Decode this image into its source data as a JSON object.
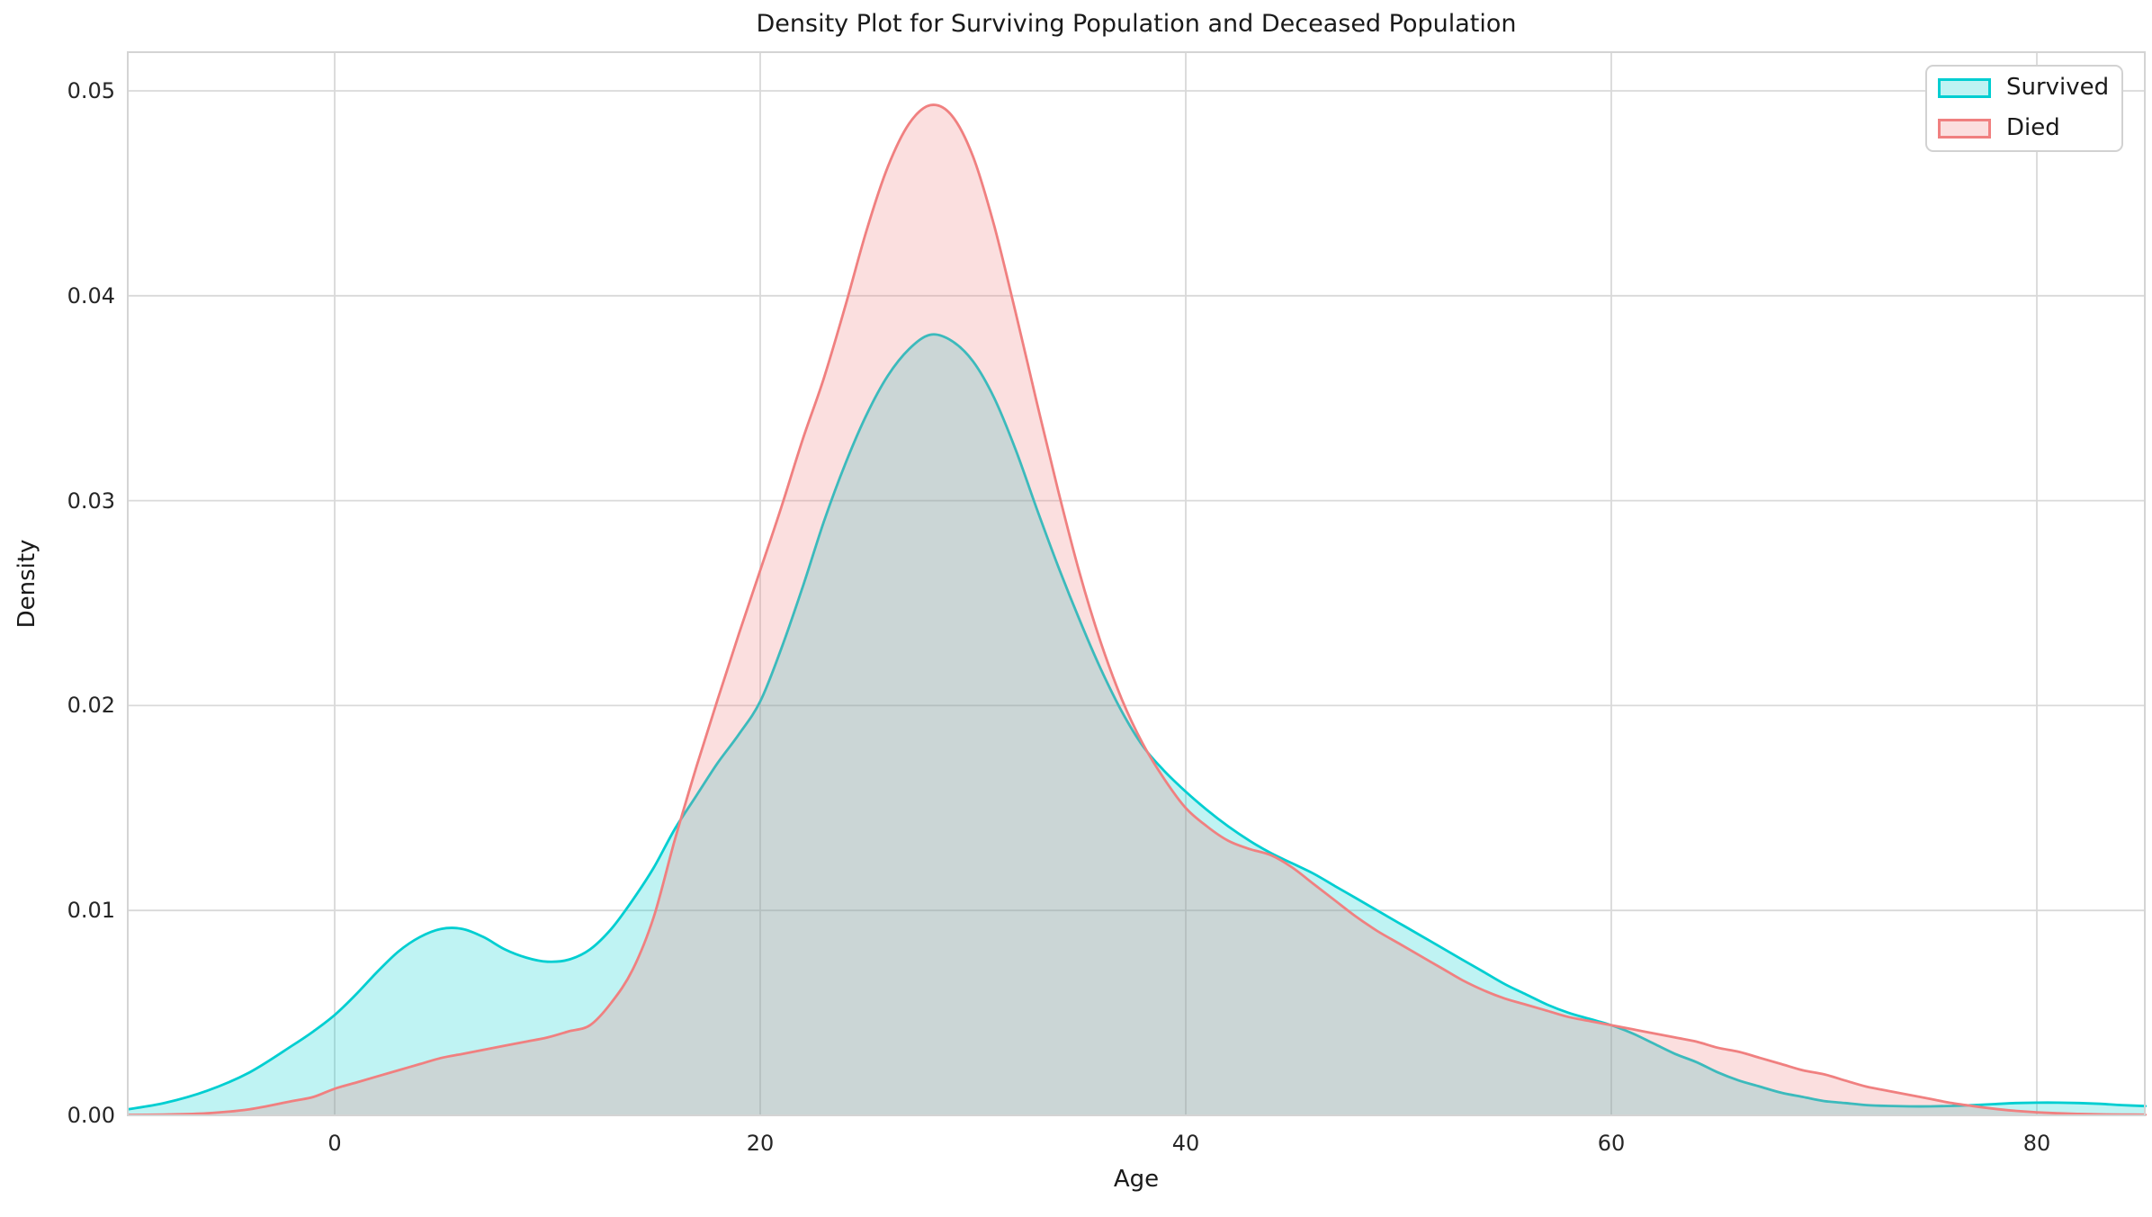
{
  "figure": {
    "title": "Density Plot for Surviving Population and Deceased Population",
    "background": "#ffffff",
    "grid_color": "#d9d9d9",
    "spine_color": "#d4d4d4",
    "text_color": "#262626"
  },
  "legend": {
    "items": [
      {
        "label": "Survived",
        "color": "#00CED1",
        "fill": "rgba(0,206,209,0.25)"
      },
      {
        "label": "Died",
        "color": "#F08080",
        "fill": "rgba(240,128,128,0.25)"
      }
    ]
  },
  "chart_data": {
    "type": "area",
    "subtype": "kde-density",
    "title": "Density Plot for Surviving Population and Deceased Population",
    "xlabel": "Age",
    "ylabel": "Density",
    "xlim": [
      -9.7,
      85.1
    ],
    "ylim": [
      0,
      0.0519
    ],
    "xticks": [
      0,
      20,
      40,
      60,
      80
    ],
    "ytick_labels": [
      "0.00",
      "0.01",
      "0.02",
      "0.03",
      "0.04",
      "0.05"
    ],
    "grid": true,
    "legend_position": "upper right",
    "series": [
      {
        "name": "Survived",
        "line_color": "#00CED1",
        "fill_color": "rgba(0,206,209,0.25)",
        "peak": {
          "age": 28,
          "density": 0.0381
        },
        "points": [
          [
            -9.7,
            0.0003
          ],
          [
            -8,
            0.0006
          ],
          [
            -6,
            0.0012
          ],
          [
            -4,
            0.0021
          ],
          [
            -2,
            0.0034
          ],
          [
            -1,
            0.0041
          ],
          [
            0,
            0.0049
          ],
          [
            1,
            0.0059
          ],
          [
            2,
            0.007
          ],
          [
            3,
            0.008
          ],
          [
            4,
            0.0087
          ],
          [
            5,
            0.0091
          ],
          [
            6,
            0.0091
          ],
          [
            7,
            0.0087
          ],
          [
            8,
            0.0081
          ],
          [
            9,
            0.0077
          ],
          [
            10,
            0.0075
          ],
          [
            11,
            0.0076
          ],
          [
            12,
            0.0081
          ],
          [
            13,
            0.0091
          ],
          [
            14,
            0.0105
          ],
          [
            15,
            0.0121
          ],
          [
            16,
            0.014
          ],
          [
            17,
            0.0156
          ],
          [
            18,
            0.0172
          ],
          [
            19,
            0.0186
          ],
          [
            20,
            0.0202
          ],
          [
            21,
            0.0228
          ],
          [
            22,
            0.0258
          ],
          [
            23,
            0.029
          ],
          [
            24,
            0.0318
          ],
          [
            25,
            0.0342
          ],
          [
            26,
            0.0361
          ],
          [
            27,
            0.0374
          ],
          [
            28,
            0.0381
          ],
          [
            29,
            0.0378
          ],
          [
            30,
            0.0368
          ],
          [
            31,
            0.035
          ],
          [
            32,
            0.0325
          ],
          [
            33,
            0.0296
          ],
          [
            34,
            0.0268
          ],
          [
            35,
            0.0242
          ],
          [
            36,
            0.0218
          ],
          [
            37,
            0.0197
          ],
          [
            38,
            0.018
          ],
          [
            39,
            0.0168
          ],
          [
            40,
            0.0158
          ],
          [
            41,
            0.0149
          ],
          [
            42,
            0.0141
          ],
          [
            43,
            0.0134
          ],
          [
            44,
            0.0128
          ],
          [
            45,
            0.0123
          ],
          [
            46,
            0.0118
          ],
          [
            47,
            0.0112
          ],
          [
            48,
            0.0106
          ],
          [
            49,
            0.01
          ],
          [
            50,
            0.0094
          ],
          [
            51,
            0.0088
          ],
          [
            52,
            0.0082
          ],
          [
            53,
            0.0076
          ],
          [
            54,
            0.007
          ],
          [
            55,
            0.0064
          ],
          [
            56,
            0.0059
          ],
          [
            57,
            0.0054
          ],
          [
            58,
            0.005
          ],
          [
            59,
            0.0047
          ],
          [
            60,
            0.0044
          ],
          [
            61,
            0.004
          ],
          [
            62,
            0.0035
          ],
          [
            63,
            0.003
          ],
          [
            64,
            0.0026
          ],
          [
            65,
            0.0021
          ],
          [
            66,
            0.0017
          ],
          [
            67,
            0.0014
          ],
          [
            68,
            0.0011
          ],
          [
            69,
            0.0009
          ],
          [
            70,
            0.0007
          ],
          [
            71,
            0.0006
          ],
          [
            72,
            0.0005
          ],
          [
            73,
            0.00046
          ],
          [
            74,
            0.00044
          ],
          [
            75,
            0.00044
          ],
          [
            76,
            0.00046
          ],
          [
            77,
            0.0005
          ],
          [
            78,
            0.00055
          ],
          [
            79,
            0.0006
          ],
          [
            80,
            0.00062
          ],
          [
            81,
            0.00062
          ],
          [
            82,
            0.0006
          ],
          [
            83,
            0.00056
          ],
          [
            84,
            0.0005
          ],
          [
            85.1,
            0.00045
          ]
        ]
      },
      {
        "name": "Died",
        "line_color": "#F08080",
        "fill_color": "rgba(240,128,128,0.25)",
        "peak": {
          "age": 28,
          "density": 0.0493
        },
        "points": [
          [
            -9.7,
            2e-05
          ],
          [
            -8,
            4e-05
          ],
          [
            -6,
            0.0001
          ],
          [
            -4,
            0.0003
          ],
          [
            -2,
            0.0007
          ],
          [
            -1,
            0.0009
          ],
          [
            0,
            0.0013
          ],
          [
            1,
            0.0016
          ],
          [
            2,
            0.0019
          ],
          [
            3,
            0.0022
          ],
          [
            4,
            0.0025
          ],
          [
            5,
            0.0028
          ],
          [
            6,
            0.003
          ],
          [
            7,
            0.0032
          ],
          [
            8,
            0.0034
          ],
          [
            9,
            0.0036
          ],
          [
            10,
            0.0038
          ],
          [
            11,
            0.0041
          ],
          [
            12,
            0.0044
          ],
          [
            13,
            0.0055
          ],
          [
            14,
            0.0071
          ],
          [
            15,
            0.0097
          ],
          [
            16,
            0.0135
          ],
          [
            17,
            0.017
          ],
          [
            18,
            0.0203
          ],
          [
            19,
            0.0235
          ],
          [
            20,
            0.0266
          ],
          [
            21,
            0.0297
          ],
          [
            22,
            0.033
          ],
          [
            23,
            0.036
          ],
          [
            24,
            0.0395
          ],
          [
            25,
            0.0432
          ],
          [
            26,
            0.0463
          ],
          [
            27,
            0.0484
          ],
          [
            28,
            0.0493
          ],
          [
            29,
            0.0488
          ],
          [
            30,
            0.0468
          ],
          [
            31,
            0.0434
          ],
          [
            32,
            0.0392
          ],
          [
            33,
            0.0348
          ],
          [
            34,
            0.0305
          ],
          [
            35,
            0.0265
          ],
          [
            36,
            0.0231
          ],
          [
            37,
            0.0203
          ],
          [
            38,
            0.0181
          ],
          [
            39,
            0.0164
          ],
          [
            40,
            0.015
          ],
          [
            41,
            0.0141
          ],
          [
            42,
            0.0134
          ],
          [
            43,
            0.013
          ],
          [
            44,
            0.0127
          ],
          [
            45,
            0.0121
          ],
          [
            46,
            0.0113
          ],
          [
            47,
            0.0105
          ],
          [
            48,
            0.0097
          ],
          [
            49,
            0.009
          ],
          [
            50,
            0.0084
          ],
          [
            51,
            0.0078
          ],
          [
            52,
            0.0072
          ],
          [
            53,
            0.0066
          ],
          [
            54,
            0.0061
          ],
          [
            55,
            0.0057
          ],
          [
            56,
            0.0054
          ],
          [
            57,
            0.0051
          ],
          [
            58,
            0.0048
          ],
          [
            59,
            0.0046
          ],
          [
            60,
            0.0044
          ],
          [
            61,
            0.0042
          ],
          [
            62,
            0.004
          ],
          [
            63,
            0.0038
          ],
          [
            64,
            0.0036
          ],
          [
            65,
            0.0033
          ],
          [
            66,
            0.0031
          ],
          [
            67,
            0.0028
          ],
          [
            68,
            0.0025
          ],
          [
            69,
            0.0022
          ],
          [
            70,
            0.002
          ],
          [
            71,
            0.0017
          ],
          [
            72,
            0.0014
          ],
          [
            73,
            0.0012
          ],
          [
            74,
            0.001
          ],
          [
            75,
            0.0008
          ],
          [
            76,
            0.0006
          ],
          [
            77,
            0.00045
          ],
          [
            78,
            0.00032
          ],
          [
            79,
            0.00022
          ],
          [
            80,
            0.00015
          ],
          [
            81,
            0.0001
          ],
          [
            82,
            7e-05
          ],
          [
            83,
            5e-05
          ],
          [
            84,
            4e-05
          ],
          [
            85.1,
            3e-05
          ]
        ]
      }
    ]
  }
}
